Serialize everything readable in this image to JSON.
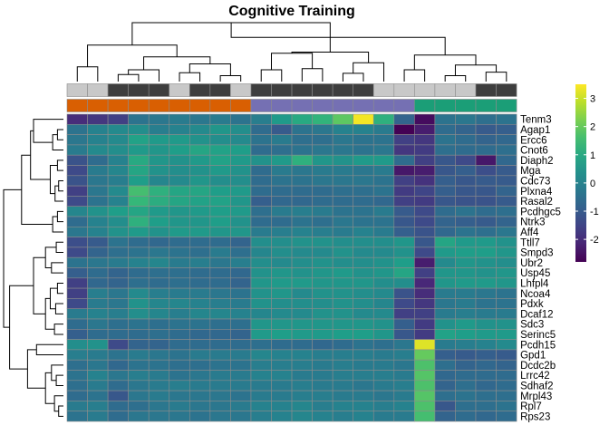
{
  "chart_data": {
    "type": "heatmap",
    "title": "Cognitive Training",
    "rows": [
      "Tenm3",
      "Agap1",
      "Ercc6",
      "Cnot6",
      "Diaph2",
      "Mga",
      "Cdc73",
      "Plxna4",
      "Rasal2",
      "Pcdhgc5",
      "Ntrk3",
      "Aff4",
      "Ttll7",
      "Smpd3",
      "Ubr2",
      "Usp45",
      "Lhfpl4",
      "Ncoa4",
      "Pdxk",
      "Dcaf12",
      "Sdc3",
      "Serinc5",
      "Pcdh15",
      "Gpd1",
      "Dcdc2b",
      "Lrrc42",
      "Sdhaf2",
      "Mrpl43",
      "Rpl7",
      "Rps23"
    ],
    "column_count": 22,
    "column_annotation_top": [
      "light",
      "light",
      "dark",
      "dark",
      "dark",
      "light",
      "dark",
      "dark",
      "light",
      "dark",
      "dark",
      "dark",
      "dark",
      "dark",
      "dark",
      "light",
      "light",
      "light",
      "light",
      "light",
      "dark",
      "dark"
    ],
    "column_annotation_bottom": [
      "orange",
      "orange",
      "orange",
      "orange",
      "orange",
      "orange",
      "orange",
      "orange",
      "orange",
      "purple",
      "purple",
      "purple",
      "purple",
      "purple",
      "purple",
      "purple",
      "purple",
      "green",
      "green",
      "green",
      "green",
      "green"
    ],
    "annotation_colors": {
      "light": "#c8c8c8",
      "dark": "#3e3e3e",
      "orange": "#d95f02",
      "purple": "#7570b3",
      "green": "#1b9e77"
    },
    "values": [
      [
        -2.0,
        -1.8,
        -1.6,
        -0.4,
        -0.3,
        -0.2,
        -0.3,
        -0.2,
        -0.4,
        -0.1,
        0.6,
        1.0,
        1.3,
        1.9,
        3.4,
        1.2,
        -0.8,
        -2.6,
        -0.4,
        -0.3,
        -0.5,
        -0.4
      ],
      [
        -0.4,
        0.0,
        0.2,
        0.3,
        -0.1,
        0.0,
        0.2,
        0.5,
        0.3,
        -0.6,
        -1.0,
        -0.4,
        -0.3,
        0.0,
        0.0,
        -0.2,
        -2.8,
        -2.3,
        -0.6,
        -0.8,
        -1.0,
        -0.9
      ],
      [
        -0.3,
        0.0,
        0.2,
        0.8,
        0.6,
        0.6,
        0.4,
        0.3,
        0.2,
        -0.4,
        -0.2,
        -0.5,
        -0.5,
        -0.3,
        -0.4,
        -0.4,
        -1.6,
        -1.8,
        -0.4,
        -0.6,
        -0.8,
        -0.7
      ],
      [
        -0.2,
        0.2,
        0.3,
        0.6,
        0.5,
        0.7,
        0.9,
        0.8,
        0.7,
        -0.6,
        -0.5,
        -0.4,
        -0.3,
        -0.3,
        -0.4,
        -0.3,
        -1.8,
        -1.7,
        -0.5,
        -0.6,
        -0.6,
        -0.5
      ],
      [
        -1.2,
        -0.6,
        0.0,
        1.0,
        0.5,
        0.4,
        0.6,
        0.8,
        0.6,
        0.4,
        0.6,
        1.2,
        0.5,
        0.4,
        0.6,
        0.6,
        -0.6,
        -1.6,
        -1.1,
        -1.4,
        -2.4,
        -0.7
      ],
      [
        -1.4,
        -0.2,
        0.1,
        0.9,
        0.4,
        0.3,
        0.4,
        0.6,
        0.4,
        -0.6,
        -0.2,
        -0.3,
        -0.2,
        -0.2,
        -0.3,
        -0.2,
        -2.4,
        -2.3,
        -1.1,
        -0.9,
        -1.3,
        -1.0
      ],
      [
        -1.2,
        -0.3,
        -0.1,
        0.7,
        0.1,
        0.2,
        0.5,
        0.3,
        0.3,
        -0.6,
        -0.4,
        -0.4,
        -0.3,
        -0.3,
        -0.3,
        -0.4,
        -1.6,
        -1.9,
        -0.9,
        -1.1,
        -1.0,
        -1.0
      ],
      [
        -1.6,
        -0.3,
        0.2,
        1.6,
        1.2,
        0.9,
        0.9,
        0.7,
        0.6,
        -0.6,
        -0.6,
        -0.6,
        -0.6,
        -0.5,
        -0.5,
        -0.4,
        -1.7,
        -1.5,
        -0.9,
        -1.1,
        -1.1,
        -0.8
      ],
      [
        -1.4,
        -0.4,
        0.0,
        1.4,
        1.1,
        0.9,
        0.8,
        0.8,
        0.5,
        -0.9,
        -0.7,
        -0.7,
        -0.6,
        -0.6,
        -0.6,
        -0.7,
        -1.6,
        -1.7,
        -1.1,
        -1.2,
        -1.2,
        -1.0
      ],
      [
        0.1,
        0.4,
        0.7,
        0.9,
        0.6,
        0.5,
        0.6,
        0.7,
        0.6,
        -0.5,
        -0.2,
        -0.1,
        -0.2,
        -0.4,
        -0.4,
        -0.2,
        -1.0,
        -1.4,
        -0.6,
        -0.4,
        -0.6,
        -0.5
      ],
      [
        -0.6,
        0.0,
        0.3,
        1.2,
        0.7,
        0.5,
        0.5,
        0.7,
        0.4,
        -0.6,
        -0.6,
        -0.4,
        -0.5,
        -0.3,
        -0.4,
        -0.4,
        -1.1,
        -1.4,
        -0.8,
        -0.9,
        -1.0,
        -0.8
      ],
      [
        -0.3,
        0.0,
        0.4,
        0.6,
        0.4,
        0.6,
        0.6,
        0.5,
        0.5,
        -0.2,
        -0.1,
        0.0,
        -0.1,
        -0.2,
        0.0,
        -0.2,
        -0.9,
        -1.2,
        -0.7,
        -0.4,
        -0.5,
        -0.3
      ],
      [
        -1.3,
        -1.0,
        -0.4,
        -0.6,
        -0.7,
        -0.6,
        -0.6,
        -0.6,
        -0.8,
        0.3,
        0.3,
        0.4,
        0.4,
        0.3,
        0.3,
        0.3,
        0.5,
        -1.1,
        0.9,
        0.6,
        0.6,
        0.4
      ],
      [
        -1.4,
        -0.8,
        -0.5,
        -0.4,
        -0.3,
        -0.4,
        -0.5,
        -0.2,
        -0.5,
        0.1,
        0.3,
        0.2,
        0.2,
        0.4,
        0.2,
        0.2,
        0.4,
        -1.4,
        0.6,
        0.7,
        0.7,
        0.5
      ],
      [
        -0.4,
        -0.3,
        -0.2,
        0.0,
        0.1,
        -0.2,
        -0.1,
        -0.3,
        -0.1,
        0.3,
        0.2,
        0.3,
        0.4,
        0.3,
        0.3,
        0.4,
        0.7,
        -2.3,
        0.2,
        0.5,
        0.4,
        0.3
      ],
      [
        -0.9,
        -0.6,
        -0.8,
        -0.6,
        -0.5,
        -0.5,
        -0.6,
        -0.6,
        -0.7,
        0.4,
        0.5,
        0.4,
        0.5,
        0.6,
        0.4,
        0.5,
        0.9,
        -1.6,
        0.5,
        0.5,
        0.4,
        0.5
      ],
      [
        -1.6,
        -0.7,
        -0.8,
        -0.5,
        -0.6,
        -0.5,
        -0.6,
        -0.6,
        -0.8,
        0.5,
        0.6,
        0.6,
        0.5,
        0.5,
        0.5,
        0.3,
        0.3,
        -2.1,
        0.5,
        0.6,
        0.6,
        0.5
      ],
      [
        -1.6,
        -0.1,
        -0.3,
        0.2,
        -0.1,
        -0.2,
        -0.2,
        -0.3,
        -0.4,
        0.4,
        0.5,
        0.2,
        0.4,
        0.4,
        0.3,
        0.2,
        -1.2,
        -2.0,
        -0.2,
        -0.2,
        -0.3,
        -0.4
      ],
      [
        -1.4,
        -0.2,
        -0.3,
        0.4,
        0.1,
        0.1,
        0.0,
        -0.1,
        -0.2,
        0.4,
        0.3,
        0.3,
        0.3,
        0.4,
        0.3,
        0.1,
        -1.4,
        -1.8,
        -0.3,
        -0.2,
        -0.4,
        -0.4
      ],
      [
        -0.2,
        0.0,
        -0.1,
        0.3,
        0.1,
        -0.1,
        0.1,
        0.1,
        0.0,
        0.1,
        0.2,
        0.2,
        0.4,
        0.4,
        0.2,
        0.2,
        -1.6,
        -1.6,
        -0.2,
        -0.1,
        -0.2,
        -0.2
      ],
      [
        -0.6,
        -0.3,
        -0.5,
        -0.4,
        -0.5,
        -0.4,
        -0.4,
        -0.5,
        -0.5,
        0.5,
        0.5,
        0.5,
        0.5,
        0.5,
        0.5,
        0.4,
        -0.9,
        -1.7,
        0.4,
        0.6,
        0.4,
        0.4
      ],
      [
        -0.9,
        -0.6,
        -0.6,
        -0.6,
        -0.5,
        -0.6,
        -0.7,
        -0.7,
        -0.8,
        0.6,
        0.7,
        0.6,
        0.6,
        0.7,
        0.7,
        0.5,
        -1.1,
        -1.7,
        0.8,
        0.7,
        0.6,
        0.6
      ],
      [
        0.3,
        0.4,
        -1.4,
        -0.8,
        -0.8,
        -0.6,
        -0.6,
        -0.6,
        -0.6,
        -0.5,
        -0.6,
        -0.6,
        -0.7,
        -0.6,
        -0.4,
        -0.5,
        -0.3,
        3.2,
        -0.2,
        -0.1,
        0.0,
        0.2
      ],
      [
        -0.1,
        -0.2,
        -0.4,
        -0.2,
        -0.3,
        -0.4,
        -0.2,
        -0.2,
        -0.2,
        0.1,
        0.0,
        0.0,
        -0.1,
        -0.1,
        -0.1,
        -0.2,
        -0.1,
        2.0,
        -0.9,
        -1.0,
        -0.9,
        -1.0
      ],
      [
        -0.5,
        -0.3,
        -0.7,
        -0.4,
        -0.4,
        -0.5,
        -0.5,
        -0.4,
        -0.4,
        -0.1,
        -0.1,
        -0.1,
        -0.2,
        -0.1,
        -0.2,
        -0.2,
        -0.3,
        1.7,
        -0.5,
        -0.8,
        -0.7,
        -0.8
      ],
      [
        -0.4,
        0.0,
        -0.3,
        -0.1,
        -0.2,
        -0.4,
        -0.3,
        -0.2,
        -0.2,
        0.0,
        0.0,
        -0.2,
        -0.2,
        -0.1,
        -0.1,
        -0.1,
        -0.2,
        1.8,
        -0.7,
        -0.6,
        -0.6,
        -0.6
      ],
      [
        -0.5,
        -0.2,
        -0.6,
        -0.3,
        -0.2,
        -0.1,
        -0.2,
        -0.2,
        -0.2,
        -0.2,
        -0.2,
        -0.1,
        -0.2,
        -0.2,
        -0.3,
        -0.2,
        -0.1,
        1.7,
        -0.8,
        -0.5,
        -0.7,
        -0.6
      ],
      [
        -0.6,
        -0.4,
        -1.1,
        -0.3,
        -0.2,
        -0.3,
        -0.3,
        -0.3,
        -0.4,
        -0.2,
        -0.2,
        -0.1,
        -0.1,
        -0.2,
        -0.2,
        -0.3,
        -0.2,
        1.8,
        -0.5,
        -0.4,
        -0.5,
        -0.5
      ],
      [
        -0.2,
        -0.1,
        -0.6,
        -0.5,
        -0.3,
        -0.2,
        -0.3,
        -0.3,
        -0.2,
        0.0,
        0.0,
        0.1,
        -0.1,
        0.0,
        0.0,
        -0.1,
        0.0,
        1.7,
        -1.1,
        -0.5,
        -0.5,
        -0.4
      ],
      [
        -0.4,
        -0.2,
        -0.6,
        -0.3,
        -0.3,
        -0.3,
        -0.4,
        -0.3,
        -0.3,
        -0.1,
        0.0,
        0.1,
        0.0,
        -0.1,
        0.0,
        -0.2,
        -0.2,
        1.6,
        -0.8,
        -0.6,
        -0.7,
        -0.6
      ]
    ],
    "colorbar": {
      "min": -2.8,
      "max": 3.5,
      "ticks": [
        3,
        2,
        1,
        0,
        -1,
        -2
      ],
      "colormap": "viridis"
    },
    "legend_placement": "right",
    "row_dendrogram": "left",
    "column_dendrogram": "top"
  }
}
